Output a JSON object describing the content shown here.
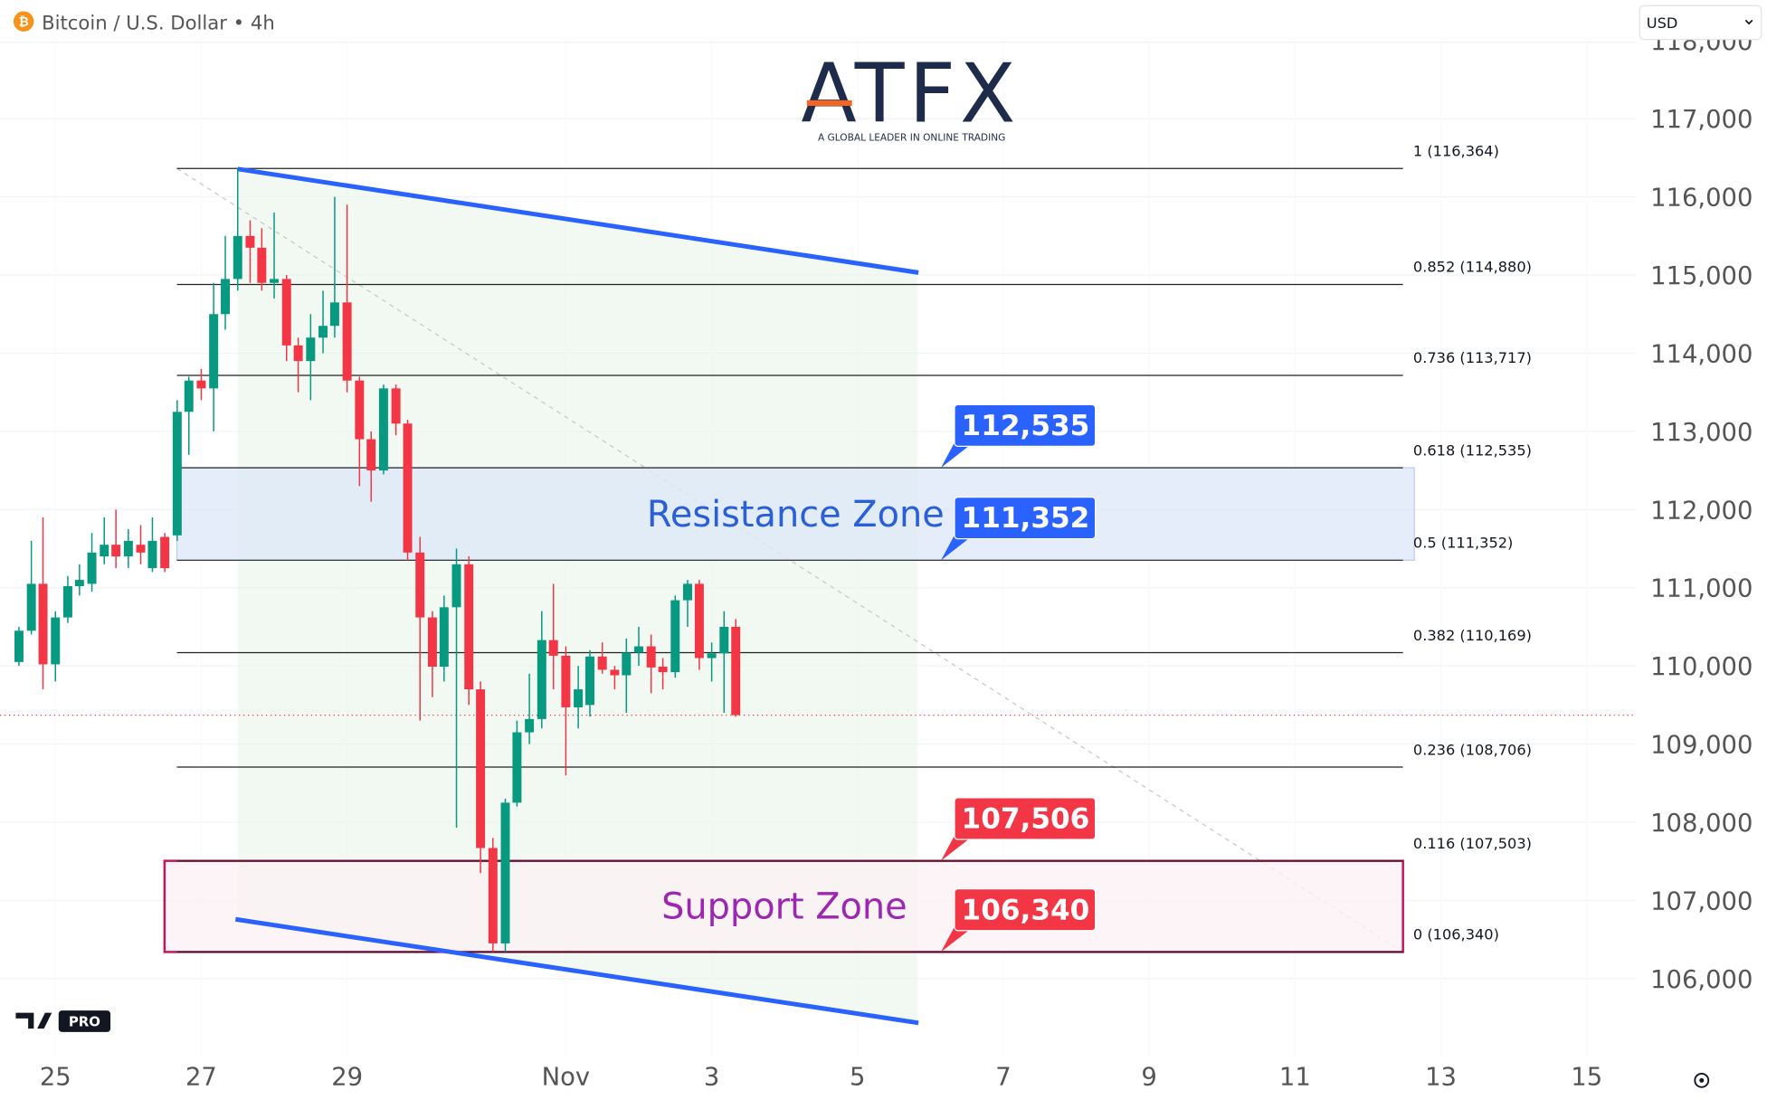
{
  "chart_data": {
    "type": "candlestick",
    "title": "Bitcoin / U.S. Dollar • 4h",
    "currency": "USD",
    "logo": {
      "name": "ATFX",
      "tagline": "A GLOBAL LEADER IN ONLINE TRADING"
    },
    "badge": "PRO",
    "up_color": "#089981",
    "down_color": "#f23645",
    "x": [
      24.5,
      24.67,
      24.83,
      25,
      25.17,
      25.33,
      25.5,
      25.67,
      25.83,
      26,
      26.17,
      26.33,
      26.5,
      26.67,
      26.83,
      27,
      27.17,
      27.33,
      27.5,
      27.67,
      27.83,
      28,
      28.17,
      28.33,
      28.5,
      28.67,
      28.83,
      29,
      29.17,
      29.33,
      29.5,
      29.67,
      29.83,
      30,
      30.17,
      30.33,
      30.5,
      30.67,
      30.83,
      31,
      31.17,
      31.33,
      31.5,
      31.67,
      31.83,
      32,
      32.17,
      32.33,
      32.5,
      32.67,
      32.83,
      33,
      33.17,
      33.33,
      33.5,
      33.67,
      33.83,
      34,
      34.17,
      34.33
    ],
    "open": [
      110050,
      110450,
      111050,
      110020,
      110620,
      111020,
      111050,
      111400,
      111550,
      111400,
      111550,
      111250,
      111650,
      111670,
      113250,
      113650,
      113550,
      114500,
      114950,
      115500,
      115350,
      114900,
      114950,
      114100,
      113900,
      114200,
      114350,
      114650,
      113650,
      112900,
      112500,
      113550,
      113100,
      111450,
      110620,
      109990,
      110750,
      111300,
      109700,
      107670,
      106450,
      108250,
      109150,
      109320,
      110330,
      110130,
      109470,
      109500,
      110120,
      109950,
      109880,
      110170,
      110250,
      109990,
      109920,
      110840,
      111050,
      110100,
      110160,
      110500
    ],
    "high": [
      110500,
      111600,
      111900,
      110700,
      111150,
      111300,
      111700,
      111900,
      112000,
      111750,
      111800,
      111900,
      111700,
      113400,
      113700,
      113800,
      114900,
      115500,
      116364,
      115700,
      115600,
      115800,
      115000,
      114200,
      114500,
      114800,
      116000,
      115900,
      113700,
      113000,
      113600,
      113600,
      113150,
      111650,
      110700,
      110900,
      111500,
      111400,
      109800,
      107800,
      108300,
      109300,
      109900,
      110700,
      111050,
      110250,
      110000,
      110200,
      110300,
      110000,
      110350,
      110500,
      110400,
      110100,
      110900,
      111100,
      111100,
      110300,
      110700,
      110600
    ],
    "low": [
      110000,
      110400,
      109700,
      109800,
      110550,
      110900,
      110950,
      111300,
      111250,
      111250,
      111300,
      111200,
      111200,
      111600,
      112700,
      113400,
      113000,
      114300,
      114800,
      114900,
      114800,
      114700,
      113900,
      113500,
      113400,
      114000,
      114200,
      113500,
      112300,
      112100,
      112450,
      112950,
      111350,
      109300,
      109600,
      109800,
      107930,
      109500,
      107350,
      106340,
      106340,
      108200,
      109000,
      109200,
      109700,
      108600,
      109200,
      109350,
      109900,
      109700,
      109400,
      110000,
      109650,
      109700,
      109850,
      110500,
      109950,
      109800,
      109400,
      109350
    ],
    "close": [
      110450,
      111050,
      110020,
      110620,
      111020,
      111100,
      111450,
      111550,
      111400,
      111600,
      111450,
      111600,
      111250,
      113250,
      113650,
      113550,
      114500,
      114950,
      115500,
      115350,
      114900,
      114950,
      114100,
      113900,
      114200,
      114350,
      114650,
      113650,
      112900,
      112500,
      113550,
      113100,
      111450,
      110620,
      109990,
      110750,
      111300,
      109700,
      107670,
      106450,
      108250,
      109150,
      109320,
      110330,
      110130,
      109470,
      109700,
      110120,
      109950,
      109880,
      110170,
      110250,
      109980,
      109920,
      110840,
      111050,
      110100,
      110160,
      110500,
      109370
    ],
    "xlim": [
      24.24,
      46.68
    ],
    "xticks": [
      25,
      27,
      29,
      {
        "value": 32,
        "label": "Nov"
      },
      {
        "value": 34,
        "label": "3"
      },
      {
        "value": 36,
        "label": "5"
      },
      {
        "value": 38,
        "label": "7"
      },
      {
        "value": 40,
        "label": "9"
      },
      {
        "value": 42,
        "label": "11"
      },
      {
        "value": 44,
        "label": "13"
      },
      {
        "value": 46,
        "label": "15"
      }
    ],
    "ylim": [
      105000,
      118000
    ],
    "yticks": [
      {
        "value": 106000,
        "label": "106,000"
      },
      {
        "value": 107000,
        "label": "107,000"
      },
      {
        "value": 108000,
        "label": "108,000"
      },
      {
        "value": 109000,
        "label": "109,000"
      },
      {
        "value": 110000,
        "label": "110,000"
      },
      {
        "value": 111000,
        "label": "111,000"
      },
      {
        "value": 112000,
        "label": "112,000"
      },
      {
        "value": 113000,
        "label": "113,000"
      },
      {
        "value": 114000,
        "label": "114,000"
      },
      {
        "value": 115000,
        "label": "115,000"
      },
      {
        "value": 116000,
        "label": "116,000"
      },
      {
        "value": 117000,
        "label": "117,000"
      },
      {
        "value": 118000,
        "label": "118,000"
      }
    ],
    "grid": true,
    "fib_levels": [
      {
        "value": 116364,
        "label": "1 (116,364)"
      },
      {
        "value": 114880,
        "label": "0.852 (114,880)"
      },
      {
        "value": 113717,
        "label": "0.736 (113,717)"
      },
      {
        "value": 112535,
        "label": "0.618 (112,535)"
      },
      {
        "value": 111352,
        "label": "0.5 (111,352)"
      },
      {
        "value": 110169,
        "label": "0.382 (110,169)"
      },
      {
        "value": 108706,
        "label": "0.236 (108,706)"
      },
      {
        "value": 107503,
        "label": "0.116 (107,503)"
      },
      {
        "value": 106340,
        "label": "0 (106,340)"
      }
    ],
    "zones": [
      {
        "label": "Resistance Zone",
        "low": 111352,
        "high": 112535,
        "fill": "#dde8f7",
        "border": "#b8cdf0",
        "text_color": "#2a5fd8"
      },
      {
        "label": "Support Zone",
        "low": 106340,
        "high": 107506,
        "fill": "#fbf1f4",
        "border": "#c2185b",
        "text_color": "#9c27b0"
      }
    ],
    "callouts": [
      {
        "value": 112535,
        "label": "112,535",
        "color": "#2962ff"
      },
      {
        "value": 111352,
        "label": "111,352",
        "color": "#2962ff"
      },
      {
        "value": 107506,
        "label": "107,506",
        "color": "#f23645"
      },
      {
        "value": 106340,
        "label": "106,340",
        "color": "#f23645"
      }
    ]
  }
}
